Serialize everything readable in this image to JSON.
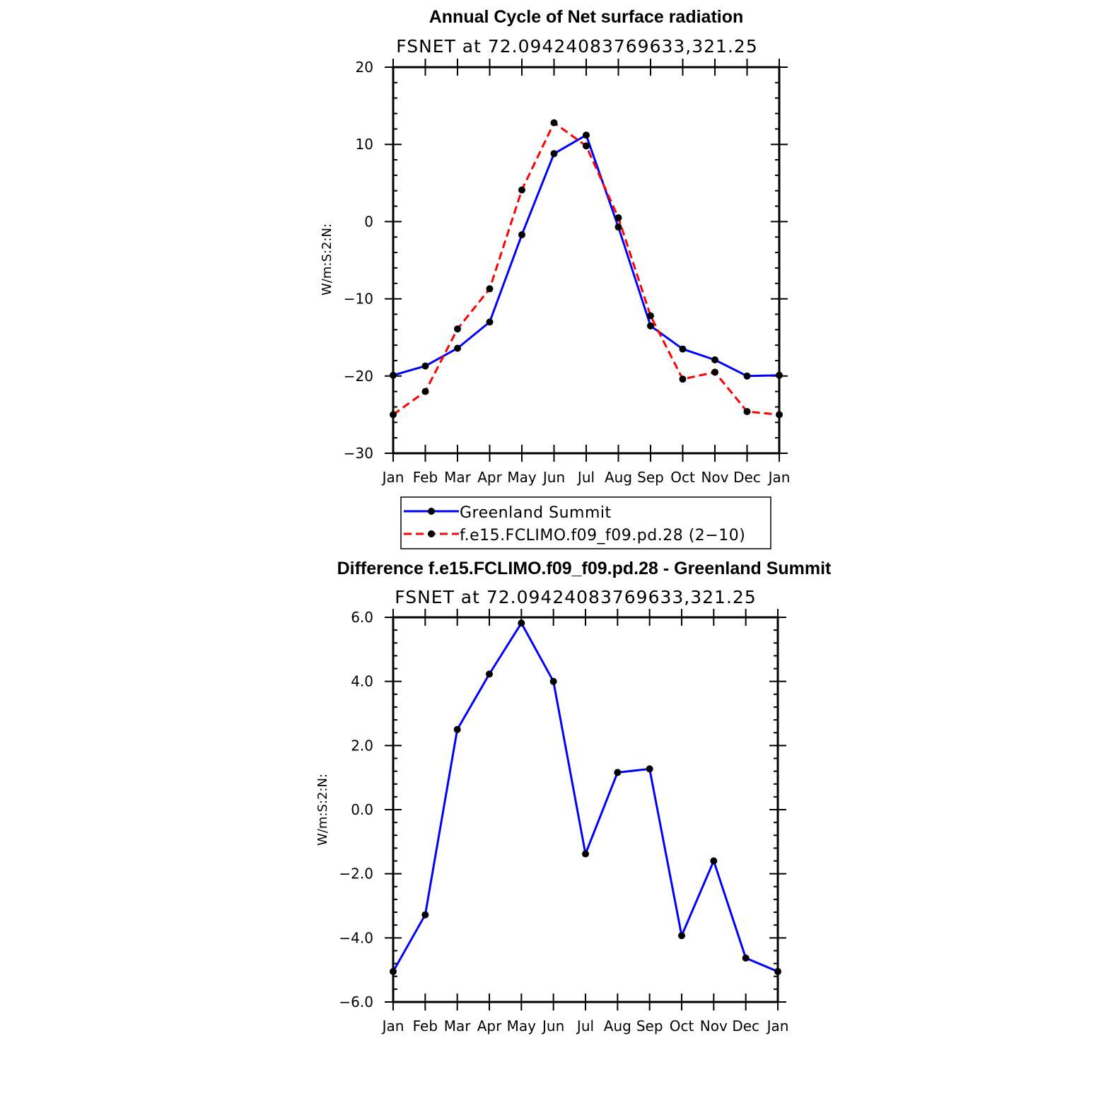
{
  "chart_data": [
    {
      "type": "line",
      "title": "Annual Cycle of Net surface radiation",
      "subtitle": "FSNET at 72.09424083769633,321.25",
      "xlabel": "",
      "ylabel": "W/m:S:2:N:",
      "categories": [
        "Jan",
        "Feb",
        "Mar",
        "Apr",
        "May",
        "Jun",
        "Jul",
        "Aug",
        "Sep",
        "Oct",
        "Nov",
        "Dec",
        "Jan"
      ],
      "ylim": [
        -30,
        20
      ],
      "yticks": [
        20,
        10,
        0,
        -10,
        -20,
        -30
      ],
      "ytick_labels": [
        "20",
        "10",
        "0",
        "−10",
        "−20",
        "−30"
      ],
      "grid": false,
      "legend_position": "bottom",
      "series": [
        {
          "name": "Greenland Summit",
          "color": "#0000ff",
          "dash": "solid",
          "values": [
            -19.9,
            -18.7,
            -16.4,
            -13.0,
            -1.7,
            8.8,
            11.2,
            -0.7,
            -13.5,
            -16.5,
            -17.9,
            -20.0,
            -19.9
          ]
        },
        {
          "name": "f.e15.FCLIMO.f09_f09.pd.28 (2−10)",
          "color": "#ff0000",
          "dash": "dashed",
          "values": [
            -25.0,
            -22.0,
            -13.9,
            -8.7,
            4.1,
            12.8,
            9.8,
            0.5,
            -12.2,
            -20.4,
            -19.5,
            -24.6,
            -25.0
          ]
        }
      ]
    },
    {
      "type": "line",
      "title": "Difference f.e15.FCLIMO.f09_f09.pd.28 - Greenland Summit",
      "subtitle": "FSNET at 72.09424083769633,321.25",
      "xlabel": "",
      "ylabel": "W/m:S:2:N:",
      "categories": [
        "Jan",
        "Feb",
        "Mar",
        "Apr",
        "May",
        "Jun",
        "Jul",
        "Aug",
        "Sep",
        "Oct",
        "Nov",
        "Dec",
        "Jan"
      ],
      "ylim": [
        -6,
        6
      ],
      "yticks": [
        6,
        4,
        2,
        0,
        -2,
        -4,
        -6
      ],
      "ytick_labels": [
        "6.0",
        "4.0",
        "2.0",
        "0.0",
        "−2.0",
        "−4.0",
        "−6.0"
      ],
      "grid": false,
      "series": [
        {
          "color": "#0000ff",
          "dash": "solid",
          "values": [
            -5.05,
            -3.28,
            2.5,
            4.23,
            5.82,
            4.0,
            -1.38,
            1.16,
            1.27,
            -3.93,
            -1.6,
            -4.63,
            -5.05
          ]
        }
      ]
    }
  ]
}
